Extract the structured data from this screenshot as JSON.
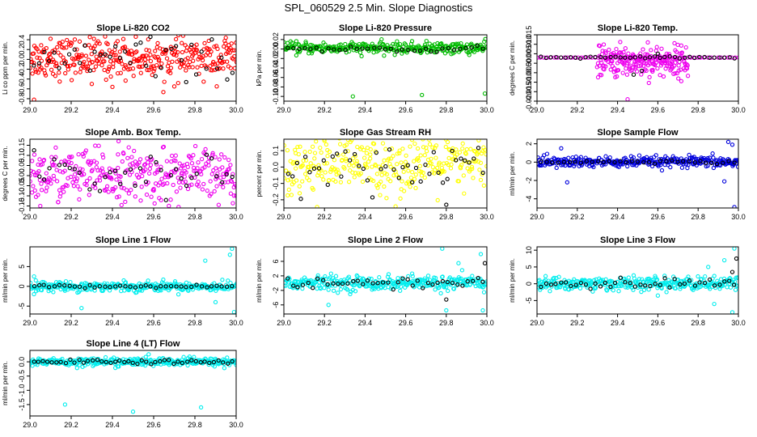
{
  "figure_title": "SPL_060529  2.5 Min. Slope Diagnostics",
  "colors": {
    "co2": "#ff0000",
    "pressure": "#00bb00",
    "temp": "#ee00ee",
    "rh": "#ffff00",
    "sample_flow": "#0000dd",
    "line_flow": "#00eeee",
    "black": "#000000"
  },
  "chart_data": [
    {
      "type": "scatter",
      "title": "Slope Li-820 CO2",
      "ylabel": "Li co ppm per min.",
      "xlim": [
        29.0,
        30.0
      ],
      "ylim": [
        -0.85,
        0.5
      ],
      "xticks": [
        29.0,
        29.2,
        29.4,
        29.6,
        29.8,
        30.0
      ],
      "xtick_labels": [
        "29.0",
        "29.2",
        "29.4",
        "29.6",
        "29.8",
        "30.0"
      ],
      "yticks": [
        0.4,
        0.2,
        0.0,
        -0.2,
        -0.4,
        -0.6,
        -0.8
      ],
      "ytick_labels": [
        "0.4",
        "0.2",
        "0.0",
        "-0.2",
        "-0.4",
        "-0.6",
        "-0.8"
      ],
      "series": [
        {
          "name": "all",
          "color": "#ff0000",
          "x_range": [
            29.0,
            30.0
          ],
          "n": 360,
          "y_mean": 0.03,
          "y_spread": 0.2,
          "outliers": [
            [
              29.02,
              -0.82
            ],
            [
              29.1,
              0.42
            ],
            [
              29.95,
              0.44
            ],
            [
              29.7,
              -0.55
            ],
            [
              29.4,
              -0.56
            ],
            [
              29.3,
              -0.5
            ]
          ]
        },
        {
          "name": "black",
          "color": "#000000",
          "x_range": [
            29.02,
            29.98
          ],
          "n": 40,
          "y_mean": 0.02,
          "y_spread": 0.2,
          "outliers": []
        }
      ]
    },
    {
      "type": "scatter",
      "title": "Slope Li-820 Pressure",
      "ylabel": "kPa per min.",
      "xlim": [
        29.0,
        30.0
      ],
      "ylim": [
        -0.11,
        0.03
      ],
      "xticks": [
        29.0,
        29.2,
        29.4,
        29.6,
        29.8,
        30.0
      ],
      "xtick_labels": [
        "29.0",
        "29.2",
        "29.4",
        "29.6",
        "29.8",
        "30.0"
      ],
      "yticks": [
        0.02,
        0.0,
        -0.02,
        -0.04,
        -0.06,
        -0.08,
        -0.1
      ],
      "ytick_labels": [
        "0.02",
        "0.00",
        "-0.02",
        "-0.04",
        "-0.06",
        "-0.08",
        "-0.10"
      ],
      "series": [
        {
          "name": "all",
          "color": "#00bb00",
          "x_range": [
            29.0,
            30.0
          ],
          "n": 320,
          "y_mean": 0.002,
          "y_spread": 0.006,
          "outliers": [
            [
              29.34,
              -0.1
            ],
            [
              29.68,
              -0.097
            ],
            [
              29.99,
              -0.094
            ]
          ]
        },
        {
          "name": "black",
          "color": "#000000",
          "x_range": [
            29.02,
            29.98
          ],
          "n": 35,
          "y_mean": 0.0,
          "y_spread": 0.003,
          "outliers": []
        }
      ]
    },
    {
      "type": "scatter",
      "title": "Slope Li-820 Temp.",
      "ylabel": "degrees C per min.",
      "xlim": [
        29.0,
        30.0
      ],
      "ylim": [
        -0.02,
        0.015
      ],
      "xticks": [
        29.0,
        29.2,
        29.4,
        29.6,
        29.8,
        30.0
      ],
      "xtick_labels": [
        "29.0",
        "29.2",
        "29.4",
        "29.6",
        "29.8",
        "30.0"
      ],
      "yticks": [
        0.015,
        0.01,
        0.005,
        0.0,
        -0.005,
        -0.01,
        -0.015,
        -0.02
      ],
      "ytick_labels": [
        "0.015",
        "0.010",
        "0.005",
        "0.000",
        "-0.005",
        "-0.010",
        "-0.015",
        "-0.020"
      ],
      "series": [
        {
          "name": "all",
          "color": "#ee00ee",
          "x_range": [
            29.3,
            29.75
          ],
          "n": 220,
          "y_mean": 0.001,
          "y_spread": 0.004,
          "outliers": [
            [
              29.45,
              -0.019
            ],
            [
              29.55,
              0.011
            ]
          ]
        },
        {
          "name": "baseline",
          "color": "#ee00ee",
          "x_range": [
            29.0,
            30.0
          ],
          "n": 60,
          "y_mean": 0.003,
          "y_spread": 0.0,
          "outliers": []
        },
        {
          "name": "black",
          "color": "#000000",
          "x_range": [
            29.02,
            29.98
          ],
          "n": 40,
          "y_mean": 0.003,
          "y_spread": 0.0003,
          "outliers": [
            [
              29.48,
              -0.006
            ],
            [
              29.52,
              -0.004
            ],
            [
              29.6,
              0.005
            ]
          ]
        }
      ]
    },
    {
      "type": "scatter",
      "title": "Slope Amb. Box Temp.",
      "ylabel": "degrees C per min.",
      "xlim": [
        29.0,
        30.0
      ],
      "ylim": [
        -0.16,
        0.18
      ],
      "xticks": [
        29.0,
        29.2,
        29.4,
        29.6,
        29.8,
        30.0
      ],
      "xtick_labels": [
        "29.0",
        "29.2",
        "29.4",
        "29.6",
        "29.8",
        "30.0"
      ],
      "yticks": [
        0.15,
        0.1,
        0.05,
        0.0,
        -0.05,
        -0.1,
        -0.15
      ],
      "ytick_labels": [
        "0.15",
        "0.10",
        "0.05",
        "0.00",
        "-0.05",
        "-0.10",
        "-0.15"
      ],
      "series": [
        {
          "name": "all",
          "color": "#ee00ee",
          "x_range": [
            29.0,
            30.0
          ],
          "n": 340,
          "y_mean": 0.0,
          "y_spread": 0.065,
          "outliers": [
            [
              29.43,
              0.17
            ],
            [
              29.05,
              -0.15
            ]
          ]
        },
        {
          "name": "black",
          "color": "#000000",
          "x_range": [
            29.02,
            29.98
          ],
          "n": 40,
          "y_mean": 0.0,
          "y_spread": 0.06,
          "outliers": []
        }
      ]
    },
    {
      "type": "scatter",
      "title": "Slope Gas Stream RH",
      "ylabel": "percent per min.",
      "xlim": [
        29.0,
        30.0
      ],
      "ylim": [
        -0.25,
        0.17
      ],
      "xticks": [
        29.0,
        29.2,
        29.4,
        29.6,
        29.8,
        30.0
      ],
      "xtick_labels": [
        "29.0",
        "29.2",
        "29.4",
        "29.6",
        "29.8",
        "30.0"
      ],
      "yticks": [
        0.1,
        0.0,
        -0.1,
        -0.2
      ],
      "ytick_labels": [
        "0.1",
        "0.0",
        "-0.1",
        "-0.2"
      ],
      "series": [
        {
          "name": "all",
          "color": "#ffff00",
          "x_range": [
            29.0,
            30.0
          ],
          "n": 320,
          "y_mean": 0.02,
          "y_spread": 0.09,
          "outliers": [
            [
              29.55,
              -0.24
            ],
            [
              29.2,
              0.16
            ]
          ]
        },
        {
          "name": "black",
          "color": "#000000",
          "x_range": [
            29.02,
            29.98
          ],
          "n": 45,
          "y_mean": 0.0,
          "y_spread": 0.08,
          "outliers": [
            [
              29.8,
              -0.23
            ]
          ]
        }
      ]
    },
    {
      "type": "scatter",
      "title": "Slope Sample Flow",
      "ylabel": "ml/min per min.",
      "xlim": [
        29.0,
        30.0
      ],
      "ylim": [
        -5.0,
        2.5
      ],
      "xticks": [
        29.0,
        29.2,
        29.4,
        29.6,
        29.8,
        30.0
      ],
      "xtick_labels": [
        "29.0",
        "29.2",
        "29.4",
        "29.6",
        "29.8",
        "30.0"
      ],
      "yticks": [
        2,
        0,
        -2,
        -4
      ],
      "ytick_labels": [
        "2",
        "0",
        "-2",
        "-4"
      ],
      "series": [
        {
          "name": "all",
          "color": "#0000dd",
          "x_range": [
            29.0,
            30.0
          ],
          "n": 320,
          "y_mean": 0.0,
          "y_spread": 0.3,
          "outliers": [
            [
              29.98,
              -4.9
            ],
            [
              29.95,
              2.2
            ],
            [
              29.97,
              1.9
            ],
            [
              29.15,
              -2.2
            ],
            [
              29.12,
              1.5
            ],
            [
              29.93,
              -2.1
            ],
            [
              29.05,
              0.9
            ]
          ]
        },
        {
          "name": "black",
          "color": "#000000",
          "x_range": [
            29.02,
            29.98
          ],
          "n": 35,
          "y_mean": 0.0,
          "y_spread": 0.1,
          "outliers": []
        }
      ]
    },
    {
      "type": "scatter",
      "title": "Slope Line 1 Flow",
      "ylabel": "ml/min per min.",
      "xlim": [
        29.0,
        30.0
      ],
      "ylim": [
        -7.0,
        10.0
      ],
      "xticks": [
        29.0,
        29.2,
        29.4,
        29.6,
        29.8,
        30.0
      ],
      "xtick_labels": [
        "29.0",
        "29.2",
        "29.4",
        "29.6",
        "29.8",
        "30.0"
      ],
      "yticks": [
        5,
        0,
        -5
      ],
      "ytick_labels": [
        "5",
        "0",
        "-5"
      ],
      "series": [
        {
          "name": "all",
          "color": "#00eeee",
          "x_range": [
            29.0,
            30.0
          ],
          "n": 320,
          "y_mean": 0.0,
          "y_spread": 0.6,
          "outliers": [
            [
              29.98,
              9.5
            ],
            [
              29.97,
              8.0
            ],
            [
              29.99,
              -6.5
            ],
            [
              29.85,
              6.5
            ],
            [
              29.9,
              -4.0
            ],
            [
              29.25,
              -5.5
            ],
            [
              29.02,
              2.5
            ]
          ]
        },
        {
          "name": "black",
          "color": "#000000",
          "x_range": [
            29.02,
            29.98
          ],
          "n": 40,
          "y_mean": 0.0,
          "y_spread": 0.2,
          "outliers": []
        }
      ]
    },
    {
      "type": "scatter",
      "title": "Slope Line 2 Flow",
      "ylabel": "ml/min per min.",
      "xlim": [
        29.0,
        30.0
      ],
      "ylim": [
        -8.5,
        10.0
      ],
      "xticks": [
        29.0,
        29.2,
        29.4,
        29.6,
        29.8,
        30.0
      ],
      "xtick_labels": [
        "29.0",
        "29.2",
        "29.4",
        "29.6",
        "29.8",
        "30.0"
      ],
      "yticks": [
        6,
        2,
        -2,
        -6
      ],
      "ytick_labels": [
        "6",
        "2",
        "-2",
        "-6"
      ],
      "series": [
        {
          "name": "all",
          "color": "#00eeee",
          "x_range": [
            29.0,
            30.0
          ],
          "n": 320,
          "y_mean": 0.0,
          "y_spread": 1.0,
          "outliers": [
            [
              29.78,
              9.5
            ],
            [
              29.8,
              -7.5
            ],
            [
              29.97,
              8.0
            ],
            [
              29.22,
              -6.0
            ],
            [
              29.98,
              -7.5
            ],
            [
              29.86,
              5.5
            ]
          ]
        },
        {
          "name": "black",
          "color": "#000000",
          "x_range": [
            29.02,
            29.98
          ],
          "n": 40,
          "y_mean": 0.0,
          "y_spread": 0.8,
          "outliers": [
            [
              29.8,
              -4.5
            ],
            [
              29.99,
              5.5
            ]
          ]
        }
      ]
    },
    {
      "type": "scatter",
      "title": "Slope Line 3 Flow",
      "ylabel": "ml/min per min.",
      "xlim": [
        29.0,
        30.0
      ],
      "ylim": [
        -9.0,
        11.0
      ],
      "xticks": [
        29.0,
        29.2,
        29.4,
        29.6,
        29.8,
        30.0
      ],
      "xtick_labels": [
        "29.0",
        "29.2",
        "29.4",
        "29.6",
        "29.8",
        "30.0"
      ],
      "yticks": [
        10,
        5,
        0,
        -5
      ],
      "ytick_labels": [
        "10",
        "5",
        "0",
        "-5"
      ],
      "series": [
        {
          "name": "all",
          "color": "#00eeee",
          "x_range": [
            29.0,
            30.0
          ],
          "n": 320,
          "y_mean": 0.0,
          "y_spread": 1.0,
          "outliers": [
            [
              29.98,
              10.5
            ],
            [
              29.97,
              -8.5
            ],
            [
              29.88,
              -6.0
            ],
            [
              29.93,
              7.0
            ],
            [
              29.85,
              5.0
            ],
            [
              29.6,
              -3.5
            ]
          ]
        },
        {
          "name": "black",
          "color": "#000000",
          "x_range": [
            29.02,
            29.98
          ],
          "n": 40,
          "y_mean": 0.0,
          "y_spread": 0.8,
          "outliers": [
            [
              29.99,
              7.5
            ],
            [
              29.97,
              3.5
            ]
          ]
        }
      ]
    },
    {
      "type": "scatter",
      "title": "Slope Line 4 (LT) Flow",
      "ylabel": "ml/min per min.",
      "xlim": [
        29.0,
        30.0
      ],
      "ylim": [
        -1.9,
        0.4
      ],
      "xticks": [
        29.0,
        29.2,
        29.4,
        29.6,
        29.8,
        30.0
      ],
      "xtick_labels": [
        "29.0",
        "29.2",
        "29.4",
        "29.6",
        "29.8",
        "30.0"
      ],
      "yticks": [
        0.0,
        -0.5,
        -1.0,
        -1.5
      ],
      "ytick_labels": [
        "0.0",
        "-0.5",
        "-1.0",
        "-1.5"
      ],
      "series": [
        {
          "name": "all",
          "color": "#00eeee",
          "x_range": [
            29.0,
            30.0
          ],
          "n": 340,
          "y_mean": 0.0,
          "y_spread": 0.07,
          "outliers": [
            [
              29.17,
              -1.5
            ],
            [
              29.5,
              -1.75
            ],
            [
              29.83,
              -1.6
            ]
          ]
        },
        {
          "name": "black",
          "color": "#000000",
          "x_range": [
            29.02,
            29.98
          ],
          "n": 45,
          "y_mean": 0.0,
          "y_spread": 0.04,
          "outliers": []
        }
      ]
    }
  ]
}
